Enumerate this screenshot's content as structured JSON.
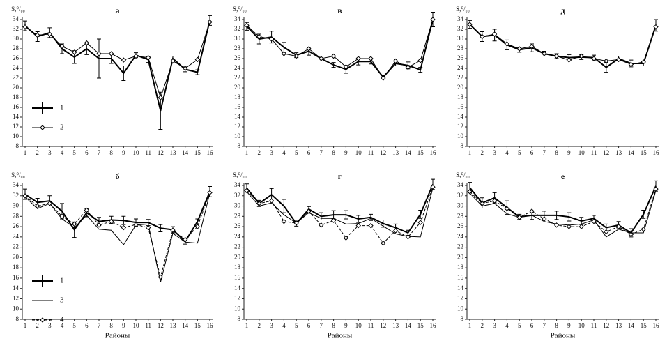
{
  "chart_data": [
    {
      "type": "line",
      "title": "а",
      "y_label": "S,⁰/₀₀",
      "categories": [
        "1",
        "2",
        "3",
        "4",
        "5",
        "6",
        "7",
        "8",
        "9",
        "10",
        "11",
        "12",
        "13",
        "14",
        "15",
        "16"
      ],
      "ylim": [
        8,
        34
      ],
      "yticks": [
        8,
        10,
        12,
        14,
        16,
        18,
        20,
        22,
        24,
        26,
        28,
        30,
        32,
        34
      ],
      "legend": "lower left",
      "series": [
        {
          "name": "1",
          "color": "#000",
          "width": 2,
          "values": [
            32.7,
            30.5,
            31.3,
            28,
            26.3,
            28,
            26,
            26,
            23,
            26.7,
            25.8,
            15.3,
            26,
            23.8,
            23.2,
            33.8
          ],
          "errors": [
            1,
            1,
            1,
            1,
            1.3,
            1.2,
            4,
            1,
            1.5,
            0.5,
            0.6,
            3.8,
            0.5,
            0.5,
            0.5,
            1
          ]
        },
        {
          "name": "2",
          "color": "#000",
          "width": 1,
          "marker": "diamond",
          "values": [
            32.5,
            30.8,
            31,
            28.5,
            27.3,
            29.2,
            27,
            27,
            25.7,
            26.5,
            26.2,
            18,
            25.5,
            24,
            25.8,
            33.5
          ]
        }
      ]
    },
    {
      "type": "line",
      "title": "в",
      "y_label": "S,⁰/₀₀",
      "categories": [
        "1",
        "2",
        "3",
        "4",
        "5",
        "6",
        "7",
        "8",
        "9",
        "10",
        "11",
        "12",
        "13",
        "14",
        "15",
        "16"
      ],
      "ylim": [
        8,
        34
      ],
      "yticks": [
        8,
        10,
        12,
        14,
        16,
        18,
        20,
        22,
        24,
        26,
        28,
        30,
        32,
        34
      ],
      "series": [
        {
          "name": "1",
          "color": "#000",
          "width": 2,
          "values": [
            32.6,
            30,
            30.4,
            28.3,
            26.7,
            27.5,
            26,
            24.7,
            23.8,
            25.4,
            25.4,
            22.2,
            25,
            24.6,
            23.7,
            34
          ],
          "errors": [
            0.8,
            1,
            1.2,
            1,
            0.5,
            0.8,
            0.5,
            0.5,
            0.8,
            0.7,
            0.5,
            0.3,
            0.5,
            0.7,
            0.5,
            1.5
          ]
        },
        {
          "name": "2",
          "color": "#000",
          "width": 1,
          "marker": "diamond",
          "values": [
            32.8,
            30.5,
            30,
            27,
            26.5,
            28,
            26,
            26.5,
            24.3,
            26,
            26,
            22,
            25.5,
            24.2,
            25.6,
            34
          ]
        }
      ]
    },
    {
      "type": "line",
      "title": "д",
      "y_label": "S,⁰/₀₀",
      "categories": [
        "1",
        "2",
        "3",
        "4",
        "5",
        "6",
        "7",
        "8",
        "9",
        "10",
        "11",
        "12",
        "13",
        "14",
        "15",
        "16"
      ],
      "ylim": [
        8,
        34
      ],
      "yticks": [
        8,
        10,
        12,
        14,
        16,
        18,
        20,
        22,
        24,
        26,
        28,
        30,
        32,
        34
      ],
      "series": [
        {
          "name": "1",
          "color": "#000",
          "width": 2,
          "values": [
            33,
            30.5,
            30.8,
            28.8,
            27.8,
            28.2,
            27,
            26.5,
            26.2,
            26.3,
            26.2,
            24.2,
            26,
            25,
            25,
            32.8
          ],
          "errors": [
            0.8,
            1,
            1.2,
            1,
            0.5,
            0.8,
            0.5,
            0.5,
            0.6,
            0.5,
            0.5,
            1,
            0.5,
            0.7,
            0.5,
            1.2
          ]
        },
        {
          "name": "2",
          "color": "#000",
          "width": 1,
          "marker": "diamond",
          "values": [
            33,
            30.5,
            31,
            29,
            28,
            28.5,
            27,
            26.5,
            25.7,
            26.5,
            26,
            25.5,
            25.8,
            24.8,
            25.3,
            32.5
          ]
        }
      ]
    },
    {
      "type": "line",
      "title": "б",
      "y_label": "S,⁰/₀₀",
      "x_label": "Районы",
      "categories": [
        "1",
        "2",
        "3",
        "4",
        "5",
        "6",
        "7",
        "8",
        "9",
        "10",
        "11",
        "12",
        "13",
        "14",
        "15",
        "16"
      ],
      "ylim": [
        8,
        34
      ],
      "yticks": [
        8,
        10,
        12,
        14,
        16,
        18,
        20,
        22,
        24,
        26,
        28,
        30,
        32,
        34
      ],
      "legend": "lower left",
      "series": [
        {
          "name": "1",
          "color": "#000",
          "width": 2,
          "values": [
            32.3,
            30.7,
            31,
            29,
            25.4,
            28.7,
            27,
            27.3,
            27.2,
            26.8,
            26.8,
            25.7,
            25.4,
            23.1,
            27,
            32.8
          ],
          "errors": [
            1,
            0.8,
            1,
            1.5,
            1.5,
            0.8,
            0.8,
            0.7,
            0.8,
            0.7,
            0.6,
            0.7,
            0.6,
            0.5,
            0.5,
            1
          ]
        },
        {
          "name": "3",
          "color": "#000",
          "width": 1,
          "values": [
            31.8,
            29.5,
            30.5,
            27.5,
            25.8,
            28.2,
            25.5,
            25.3,
            22.5,
            26.3,
            26.5,
            15.2,
            24.7,
            23,
            22.8,
            32.5
          ]
        },
        {
          "name": "4",
          "color": "#000",
          "width": 1,
          "dashed": true,
          "marker": "diamond",
          "values": [
            32,
            30,
            30.5,
            28,
            26.5,
            29.2,
            26.3,
            27,
            25.8,
            26.4,
            25.8,
            16.2,
            25.3,
            23.5,
            26,
            32.6
          ]
        }
      ]
    },
    {
      "type": "line",
      "title": "г",
      "y_label": "S,⁰/₀₀",
      "x_label": "Районы",
      "categories": [
        "1",
        "2",
        "3",
        "4",
        "5",
        "6",
        "7",
        "8",
        "9",
        "10",
        "11",
        "12",
        "13",
        "14",
        "15",
        "16"
      ],
      "ylim": [
        8,
        34
      ],
      "yticks": [
        8,
        10,
        12,
        14,
        16,
        18,
        20,
        22,
        24,
        26,
        28,
        30,
        32,
        34
      ],
      "series": [
        {
          "name": "1",
          "color": "#000",
          "width": 2,
          "values": [
            33.5,
            30.5,
            32.2,
            30,
            26.6,
            29.4,
            28,
            28.3,
            28.3,
            27.5,
            27.8,
            26.6,
            25.8,
            24.8,
            28.4,
            34.2
          ],
          "errors": [
            0.8,
            0.6,
            1.2,
            1.3,
            0.5,
            0.5,
            0.7,
            0.8,
            0.8,
            0.7,
            0.6,
            0.7,
            0.7,
            0.5,
            0.8,
            1
          ]
        },
        {
          "name": "3",
          "color": "#000",
          "width": 1,
          "values": [
            32.8,
            30,
            30.6,
            28.3,
            26.7,
            28.7,
            27.6,
            27.6,
            26.5,
            26.6,
            27.6,
            26.1,
            24.6,
            24.1,
            24,
            33.5
          ]
        },
        {
          "name": "4",
          "color": "#000",
          "width": 1,
          "dashed": true,
          "marker": "diamond",
          "values": [
            33,
            30.5,
            31,
            27,
            26.7,
            29,
            26.3,
            27.2,
            23.8,
            26.2,
            26.2,
            22.8,
            25.2,
            24,
            26.8,
            33.7
          ]
        }
      ]
    },
    {
      "type": "line",
      "title": "е",
      "y_label": "S,⁰/₀₀",
      "x_label": "Районы",
      "categories": [
        "1",
        "2",
        "3",
        "4",
        "5",
        "6",
        "7",
        "8",
        "9",
        "10",
        "11",
        "12",
        "13",
        "14",
        "15",
        "16"
      ],
      "ylim": [
        8,
        34
      ],
      "yticks": [
        8,
        10,
        12,
        14,
        16,
        18,
        20,
        22,
        24,
        26,
        28,
        30,
        32,
        34
      ],
      "series": [
        {
          "name": "1",
          "color": "#000",
          "width": 2,
          "values": [
            33.6,
            30.6,
            31.6,
            29.7,
            27.9,
            28.2,
            28.2,
            28.2,
            27.9,
            27.1,
            27.6,
            25.8,
            26.3,
            24.8,
            28.4,
            33.9
          ],
          "errors": [
            1,
            1,
            1,
            1.3,
            0.5,
            0.8,
            0.8,
            0.8,
            0.8,
            0.7,
            0.6,
            0.7,
            0.7,
            0.8,
            0.8,
            1
          ]
        },
        {
          "name": "3",
          "color": "#000",
          "width": 1,
          "values": [
            32.5,
            30,
            30.5,
            28.5,
            27.8,
            28.2,
            27,
            26.5,
            26.3,
            26.5,
            27.3,
            24,
            25.5,
            24.8,
            24.8,
            33
          ]
        },
        {
          "name": "4",
          "color": "#000",
          "width": 1,
          "dashed": true,
          "marker": "diamond",
          "values": [
            32.8,
            30.5,
            31,
            29.5,
            27.8,
            29,
            27.5,
            26.3,
            26,
            26,
            27,
            25,
            26,
            24.5,
            25.5,
            33.3
          ]
        }
      ]
    }
  ]
}
